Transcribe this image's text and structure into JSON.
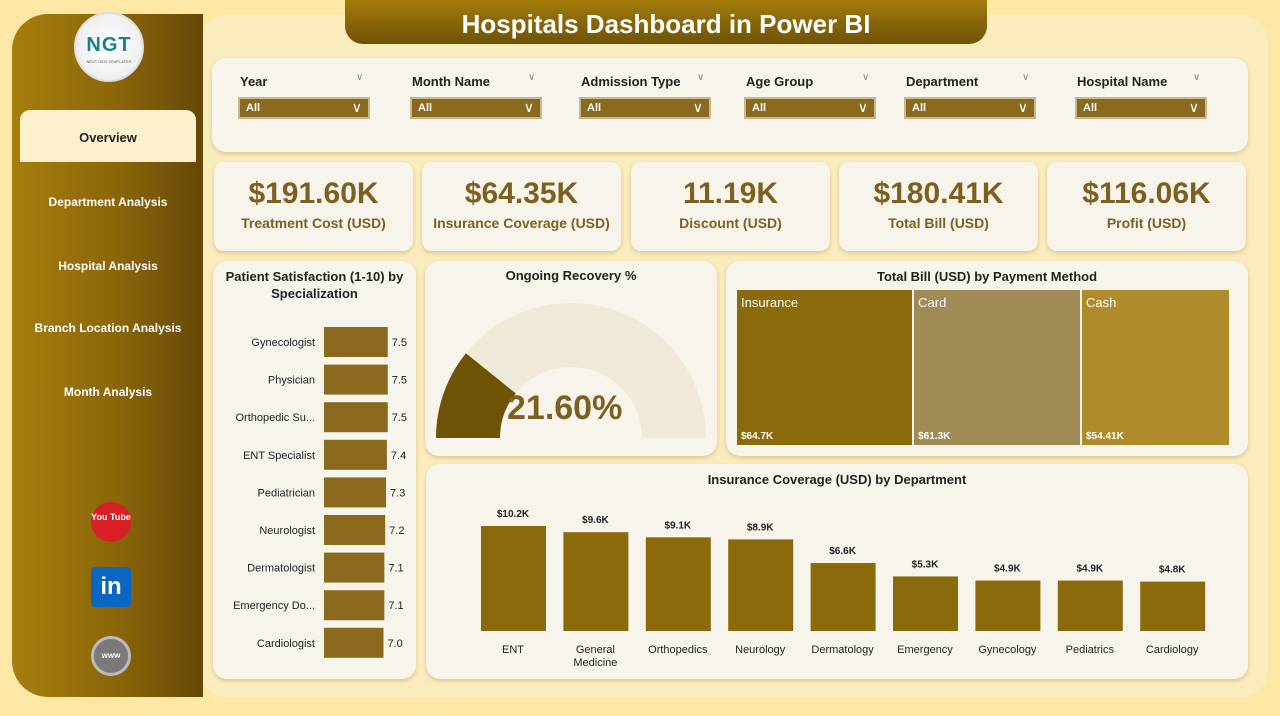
{
  "title": "Hospitals Dashboard in Power BI",
  "logo": {
    "text": "NGT",
    "subtext": "NEXT GEN TEMPLATES"
  },
  "nav": [
    {
      "label": "Overview",
      "active": true
    },
    {
      "label": "Department Analysis"
    },
    {
      "label": "Hospital Analysis"
    },
    {
      "label": "Branch Location Analysis"
    },
    {
      "label": "Month Analysis"
    }
  ],
  "social": [
    {
      "icon": "youtube-icon",
      "label": "You Tube"
    },
    {
      "icon": "linkedin-icon",
      "label": "in"
    },
    {
      "icon": "globe-icon",
      "label": "www"
    }
  ],
  "filters": [
    {
      "label": "Year",
      "value": "All"
    },
    {
      "label": "Month Name",
      "value": "All"
    },
    {
      "label": "Admission Type",
      "value": "All"
    },
    {
      "label": "Age Group",
      "value": "All"
    },
    {
      "label": "Department",
      "value": "All"
    },
    {
      "label": "Hospital Name",
      "value": "All"
    }
  ],
  "kpis": [
    {
      "value": "$191.60K",
      "label": "Treatment Cost (USD)"
    },
    {
      "value": "$64.35K",
      "label": "Insurance Coverage (USD)"
    },
    {
      "value": "11.19K",
      "label": "Discount (USD)"
    },
    {
      "value": "$180.41K",
      "label": "Total Bill (USD)"
    },
    {
      "value": "$116.06K",
      "label": "Profit (USD)"
    }
  ],
  "colors": {
    "accent": "#8b6a0c",
    "bar": "#8a6a1e",
    "card": "#a08a55",
    "cash": "#b08b2c",
    "gauge": "#6e5206"
  },
  "chart_data": [
    {
      "type": "bar",
      "orientation": "horizontal",
      "title": "Patient Satisfaction (1-10) by Specialization",
      "categories": [
        "Gynecologist",
        "Physician",
        "Orthopedic Su...",
        "ENT Specialist",
        "Pediatrician",
        "Neurologist",
        "Dermatologist",
        "Emergency Do...",
        "Cardiologist"
      ],
      "values": [
        7.5,
        7.5,
        7.5,
        7.4,
        7.3,
        7.2,
        7.1,
        7.1,
        7.0
      ],
      "labels": [
        "7.5",
        "7.5",
        "7.5",
        "7.4",
        "7.3",
        "7.2",
        "7.1",
        "7.1",
        "7.0"
      ]
    },
    {
      "type": "gauge",
      "title": "Ongoing Recovery %",
      "value": 21.6,
      "label": "21.60%",
      "range": [
        0,
        100
      ]
    },
    {
      "type": "treemap",
      "title": "Total Bill (USD) by Payment Method",
      "categories": [
        "Insurance",
        "Card",
        "Cash"
      ],
      "values": [
        64.7,
        61.3,
        54.41
      ],
      "labels": [
        "$64.7K",
        "$61.3K",
        "$54.41K"
      ]
    },
    {
      "type": "bar",
      "title": "Insurance Coverage (USD) by Department",
      "categories": [
        "ENT",
        "General Medicine",
        "Orthopedics",
        "Neurology",
        "Dermatology",
        "Emergency",
        "Gynecology",
        "Pediatrics",
        "Cardiology"
      ],
      "values": [
        10.2,
        9.6,
        9.1,
        8.9,
        6.6,
        5.3,
        4.9,
        4.9,
        4.8
      ],
      "labels": [
        "$10.2K",
        "$9.6K",
        "$9.1K",
        "$8.9K",
        "$6.6K",
        "$5.3K",
        "$4.9K",
        "$4.9K",
        "$4.8K"
      ]
    }
  ]
}
